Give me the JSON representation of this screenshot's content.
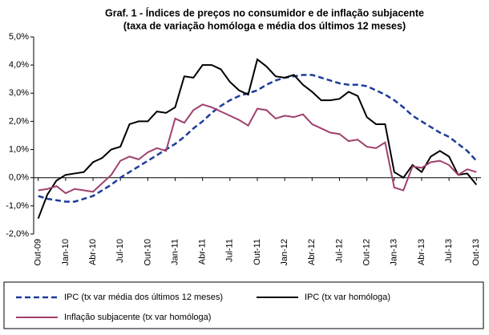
{
  "chart_data": {
    "type": "line",
    "title": "Graf. 1 - Índices de preços no consumidor e de inflação subjacente",
    "subtitle": "(taxa de variação homóloga e média dos últimos 12 meses)",
    "categories": [
      "Out-09",
      null,
      null,
      "Jan-10",
      null,
      null,
      "Abr-10",
      null,
      null,
      "Jul-10",
      null,
      null,
      "Out-10",
      null,
      null,
      "Jan-11",
      null,
      null,
      "Abr-11",
      null,
      null,
      "Jul-11",
      null,
      null,
      "Out-11",
      null,
      null,
      "Jan-12",
      null,
      null,
      "Abr-12",
      null,
      null,
      "Jul-12",
      null,
      null,
      "Out-12",
      null,
      null,
      "Jan-13",
      null,
      null,
      "Abr-13",
      null,
      null,
      "Jul-13",
      null,
      null,
      "Out-13"
    ],
    "series": [
      {
        "name": "IPC (tx var média dos últimos 12 meses)",
        "color": "#1f3c99",
        "dashed": true,
        "values": [
          -0.65,
          -0.75,
          -0.8,
          -0.85,
          -0.85,
          -0.75,
          -0.65,
          -0.45,
          -0.25,
          0.0,
          0.2,
          0.4,
          0.6,
          0.8,
          1.0,
          1.2,
          1.45,
          1.75,
          2.0,
          2.3,
          2.55,
          2.75,
          2.9,
          3.0,
          3.1,
          3.3,
          3.45,
          3.55,
          3.6,
          3.65,
          3.65,
          3.55,
          3.45,
          3.35,
          3.3,
          3.3,
          3.25,
          3.1,
          2.95,
          2.75,
          2.5,
          2.2,
          2.0,
          1.8,
          1.6,
          1.45,
          1.2,
          0.95,
          0.6
        ]
      },
      {
        "name": "IPC (tx var homóloga)",
        "color": "#000000",
        "dashed": false,
        "values": [
          -1.45,
          -0.6,
          -0.1,
          0.1,
          0.15,
          0.2,
          0.55,
          0.7,
          1.0,
          1.1,
          1.9,
          2.0,
          2.0,
          2.35,
          2.3,
          2.5,
          3.6,
          3.55,
          4.0,
          4.0,
          3.85,
          3.4,
          3.1,
          2.95,
          4.2,
          3.95,
          3.6,
          3.55,
          3.65,
          3.3,
          3.05,
          2.75,
          2.75,
          2.8,
          3.05,
          2.9,
          2.15,
          1.9,
          1.9,
          0.2,
          0.0,
          0.45,
          0.2,
          0.75,
          0.95,
          0.75,
          0.1,
          0.15,
          -0.25
        ]
      },
      {
        "name": "Inflação subjacente (tx  var homóloga)",
        "color": "#a0406e",
        "dashed": false,
        "values": [
          -0.45,
          -0.4,
          -0.3,
          -0.55,
          -0.4,
          -0.45,
          -0.5,
          -0.2,
          0.1,
          0.6,
          0.75,
          0.65,
          0.9,
          1.05,
          0.95,
          2.1,
          1.95,
          2.4,
          2.6,
          2.5,
          2.35,
          2.2,
          2.05,
          1.85,
          2.45,
          2.4,
          2.1,
          2.2,
          2.15,
          2.25,
          1.9,
          1.75,
          1.6,
          1.55,
          1.3,
          1.35,
          1.1,
          1.05,
          1.25,
          -0.35,
          -0.45,
          0.4,
          0.35,
          0.55,
          0.6,
          0.45,
          0.1,
          0.3,
          0.2
        ]
      }
    ],
    "ylim": [
      -2,
      5
    ],
    "yticks": [
      {
        "value": -2,
        "label": "-2,0%"
      },
      {
        "value": -1,
        "label": "-1,0%"
      },
      {
        "value": 0,
        "label": "0,0%"
      },
      {
        "value": 1,
        "label": "1,0%"
      },
      {
        "value": 2,
        "label": "2,0%"
      },
      {
        "value": 3,
        "label": "3,0%"
      },
      {
        "value": 4,
        "label": "4,0%"
      },
      {
        "value": 5,
        "label": "5,0%"
      }
    ],
    "grid": false
  }
}
